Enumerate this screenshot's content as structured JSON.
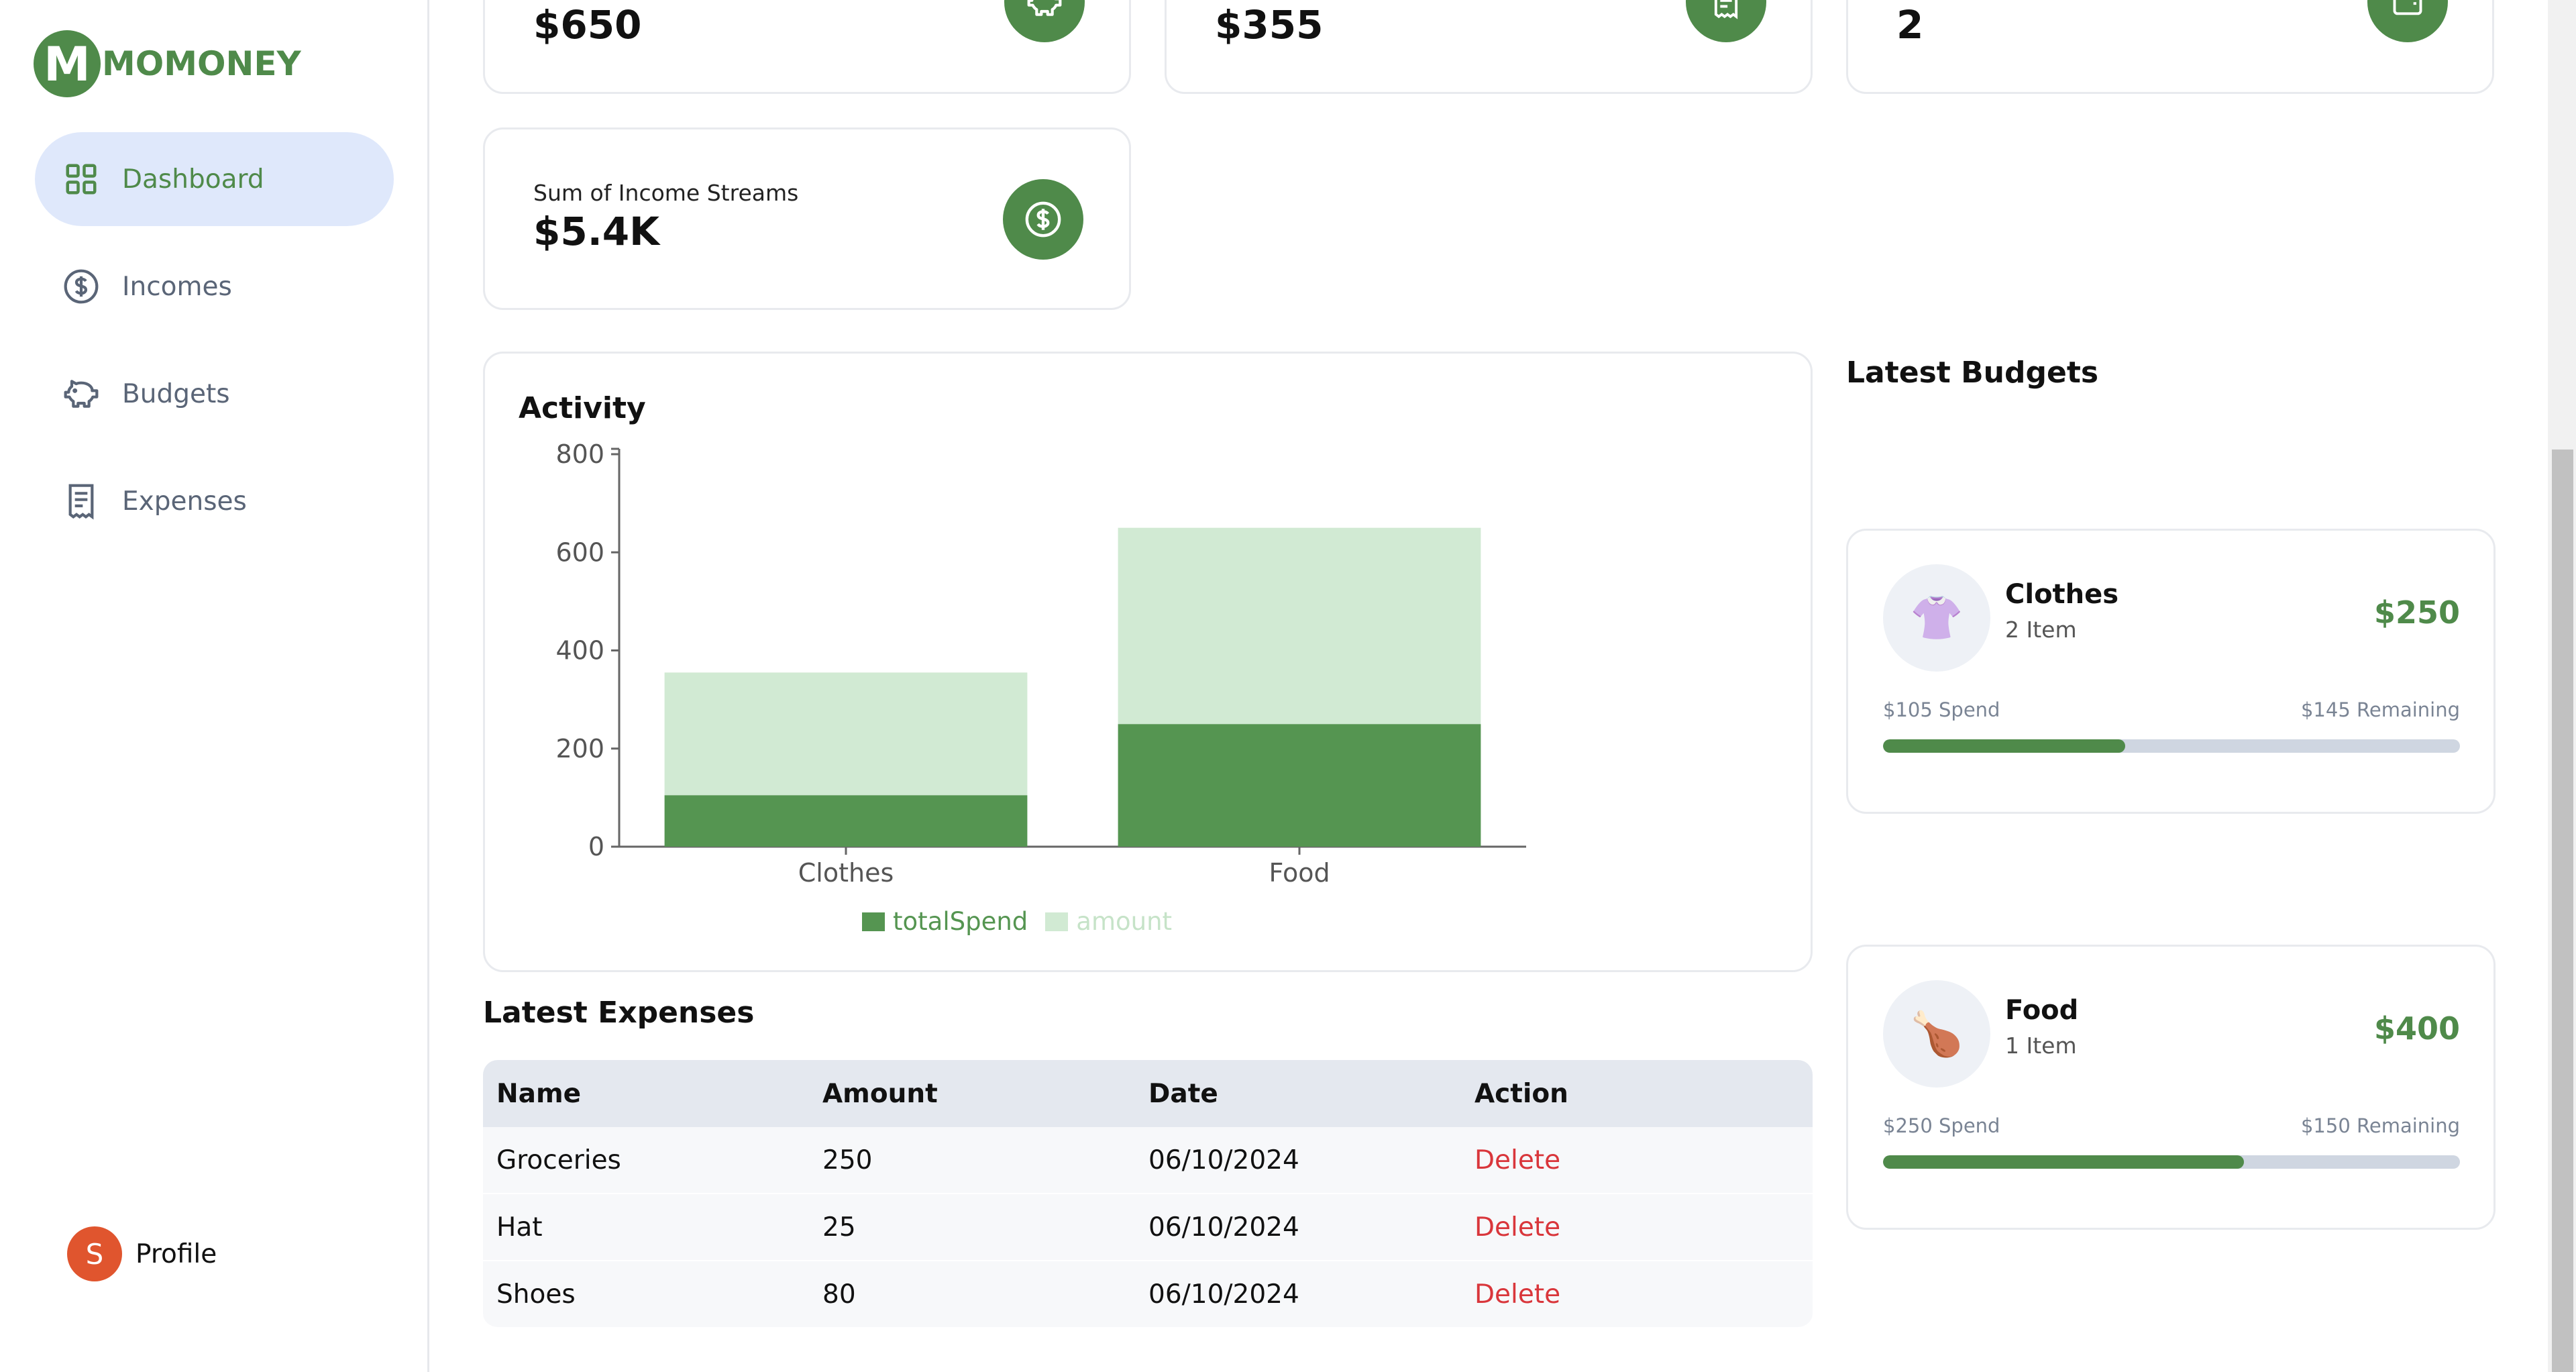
{
  "app": {
    "logo_text": "MOMONEY",
    "logo_letter": "M"
  },
  "sidebar": {
    "items": [
      {
        "label": "Dashboard",
        "icon": "dashboard-grid-icon",
        "active": true
      },
      {
        "label": "Incomes",
        "icon": "dollar-circle-icon",
        "active": false
      },
      {
        "label": "Budgets",
        "icon": "piggy-bank-icon",
        "active": false
      },
      {
        "label": "Expenses",
        "icon": "receipt-icon",
        "active": false
      }
    ],
    "profile": {
      "initial": "S",
      "label": "Profile"
    }
  },
  "stats": [
    {
      "label": "",
      "value": "$650",
      "icon": "piggy-bank-icon"
    },
    {
      "label": "",
      "value": "$355",
      "icon": "receipt-icon"
    },
    {
      "label": "",
      "value": "2",
      "icon": "wallet-icon"
    },
    {
      "label": "Sum of Income Streams",
      "value": "$5.4K",
      "icon": "dollar-circle-icon"
    }
  ],
  "activity": {
    "title": "Activity"
  },
  "chart_data": {
    "type": "bar",
    "stacked": true,
    "categories": [
      "Clothes",
      "Food"
    ],
    "series": [
      {
        "name": "totalSpend",
        "values": [
          105,
          250
        ],
        "color": "#559551"
      },
      {
        "name": "amount",
        "values": [
          250,
          400
        ],
        "color": "#d1ead3"
      }
    ],
    "yticks": [
      0,
      200,
      400,
      600,
      800
    ],
    "ylim": [
      0,
      800
    ],
    "legend": "bottom",
    "grid": false
  },
  "expenses": {
    "title": "Latest Expenses",
    "columns": [
      "Name",
      "Amount",
      "Date",
      "Action"
    ],
    "rows": [
      {
        "name": "Groceries",
        "amount": "250",
        "date": "06/10/2024",
        "action": "Delete"
      },
      {
        "name": "Hat",
        "amount": "25",
        "date": "06/10/2024",
        "action": "Delete"
      },
      {
        "name": "Shoes",
        "amount": "80",
        "date": "06/10/2024",
        "action": "Delete"
      }
    ]
  },
  "budgets": {
    "title": "Latest Budgets",
    "items": [
      {
        "name": "Clothes",
        "count": "2 Item",
        "amount": "$250",
        "spend": "$105 Spend",
        "remaining": "$145 Remaining",
        "progress": 0.42,
        "emoji": "👚",
        "icon": "shirt-icon"
      },
      {
        "name": "Food",
        "count": "1 Item",
        "amount": "$400",
        "spend": "$250 Spend",
        "remaining": "$150 Remaining",
        "progress": 0.625,
        "emoji": "🍗",
        "icon": "drumstick-icon"
      }
    ]
  },
  "colors": {
    "brand": "#4f8a4a",
    "active_nav_bg": "#dfe8fb",
    "danger": "#d9363b"
  }
}
